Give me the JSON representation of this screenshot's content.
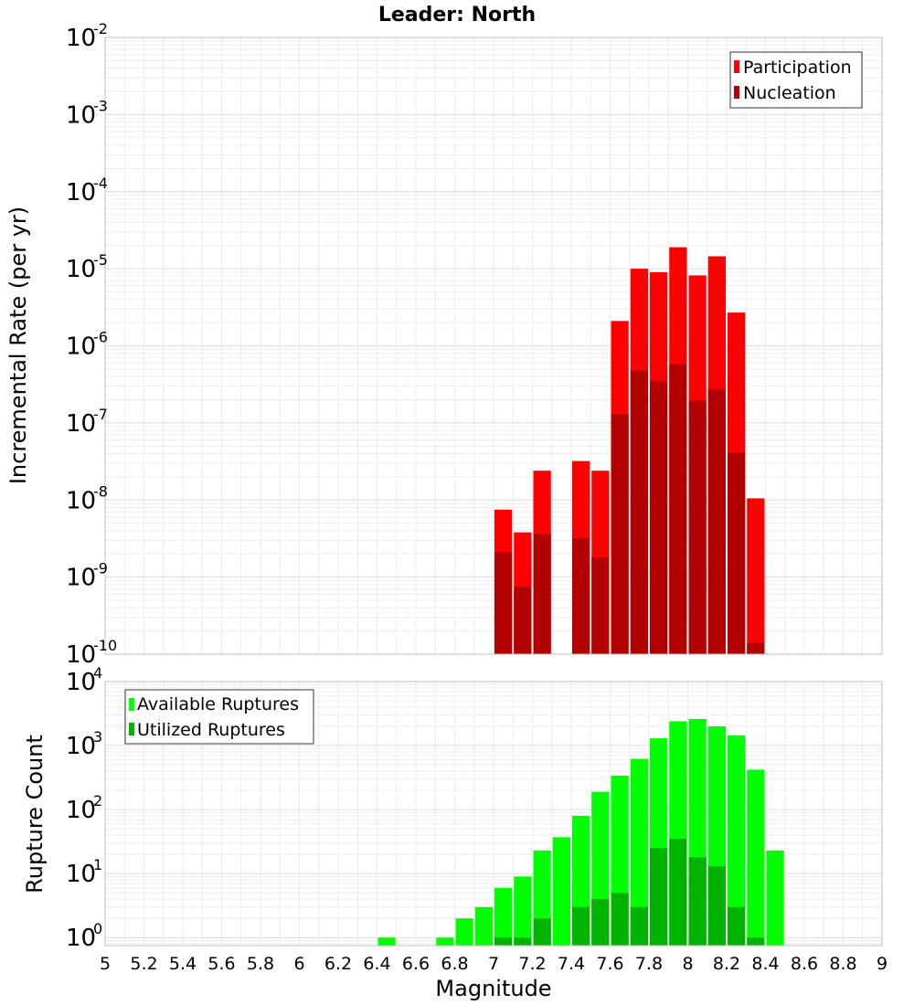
{
  "chart_data": [
    {
      "type": "bar",
      "title": "Leader: North",
      "ylabel": "Incremental Rate (per yr)",
      "xlabel": "",
      "yscale": "log",
      "ylim": [
        1e-10,
        0.01
      ],
      "xlim": [
        5,
        9
      ],
      "bin_width": 0.1,
      "grid": true,
      "legend_position": "top-right",
      "legend": [
        "Participation",
        "Nucleation"
      ],
      "x": [
        7.05,
        7.15,
        7.25,
        7.45,
        7.55,
        7.65,
        7.75,
        7.85,
        7.95,
        8.05,
        8.15,
        8.25,
        8.35
      ],
      "series": [
        {
          "name": "Participation",
          "color": "#ff0000",
          "values": [
            7.5e-09,
            3.8e-09,
            2.4e-08,
            3.2e-08,
            2.4e-08,
            2.1e-06,
            1e-05,
            9e-06,
            1.9e-05,
            8.2e-06,
            1.45e-05,
            2.7e-06,
            1.05e-08
          ]
        },
        {
          "name": "Nucleation",
          "color": "#b30000",
          "values": [
            2.1e-09,
            7.5e-10,
            3.6e-09,
            3.2e-09,
            1.8e-09,
            1.3e-07,
            4.8e-07,
            3.5e-07,
            5.8e-07,
            1.95e-07,
            2.7e-07,
            4.1e-08,
            1.4e-10
          ]
        }
      ]
    },
    {
      "type": "bar",
      "title": "",
      "ylabel": "Rupture Count",
      "xlabel": "Magnitude",
      "yscale": "log",
      "ylim": [
        0.75,
        10000
      ],
      "xlim": [
        5,
        9
      ],
      "bin_width": 0.1,
      "grid": true,
      "legend_position": "top-left",
      "legend": [
        "Available Ruptures",
        "Utilized Ruptures"
      ],
      "x_ticks": [
        "5",
        "5.2",
        "5.4",
        "5.6",
        "5.8",
        "6",
        "6.2",
        "6.4",
        "6.6",
        "6.8",
        "7",
        "7.2",
        "7.4",
        "7.6",
        "7.8",
        "8",
        "8.2",
        "8.4",
        "8.6",
        "8.8",
        "9"
      ],
      "x": [
        6.45,
        6.75,
        6.85,
        6.95,
        7.05,
        7.15,
        7.25,
        7.35,
        7.45,
        7.55,
        7.65,
        7.75,
        7.85,
        7.95,
        8.05,
        8.15,
        8.25,
        8.35,
        8.45
      ],
      "series": [
        {
          "name": "Available Ruptures",
          "color": "#00ff00",
          "values": [
            1,
            1,
            2,
            3,
            6,
            9,
            23,
            37,
            80,
            190,
            340,
            620,
            1300,
            2400,
            2600,
            2000,
            1450,
            420,
            23
          ]
        },
        {
          "name": "Utilized Ruptures",
          "color": "#00b300",
          "values": [
            null,
            null,
            null,
            null,
            1,
            1,
            2,
            null,
            3,
            4,
            5,
            3,
            25,
            35,
            18,
            13,
            3,
            1,
            null
          ]
        }
      ]
    }
  ]
}
